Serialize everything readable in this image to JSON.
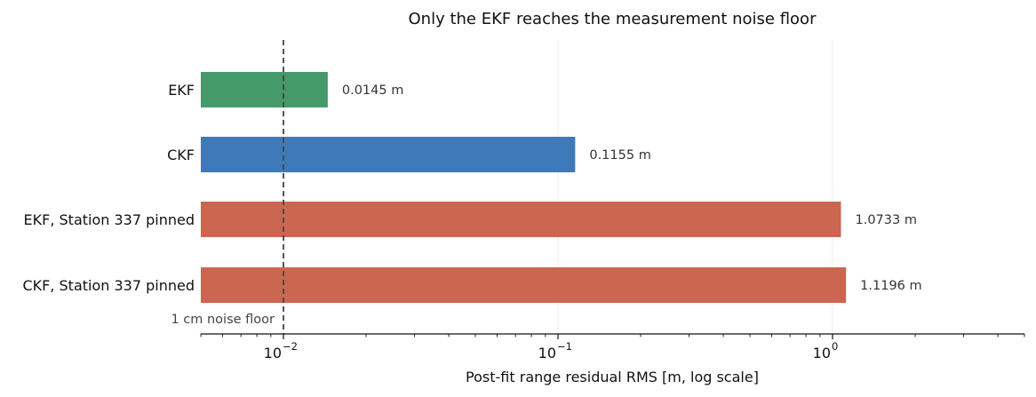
{
  "chart_data": {
    "type": "bar",
    "orientation": "horizontal",
    "title": "Only the EKF reaches the measurement noise floor",
    "xlabel": "Post-fit range residual RMS  [m, log scale]",
    "ylabel": "",
    "xscale": "log",
    "xlim": [
      0.005,
      5.0
    ],
    "categories": [
      "EKF",
      "CKF",
      "EKF, Station 337 pinned",
      "CKF, Station 337 pinned"
    ],
    "values": [
      0.0145,
      0.1155,
      1.0733,
      1.1196
    ],
    "value_labels": [
      "0.0145 m",
      "0.1155 m",
      "1.0733 m",
      "1.1196 m"
    ],
    "bar_colors": [
      "#459a69",
      "#3e7aba",
      "#cb6650",
      "#cb6650"
    ],
    "x_ticks": [
      {
        "value": 0.01,
        "base": "10",
        "exp": "−2"
      },
      {
        "value": 0.1,
        "base": "10",
        "exp": "−1"
      },
      {
        "value": 1,
        "base": "10",
        "exp": "0"
      }
    ],
    "reference_line": {
      "value": 0.01,
      "label": "1 cm noise floor",
      "style": "dashed",
      "color": "#444444"
    },
    "grid": "x-major-only",
    "legend": "none"
  }
}
